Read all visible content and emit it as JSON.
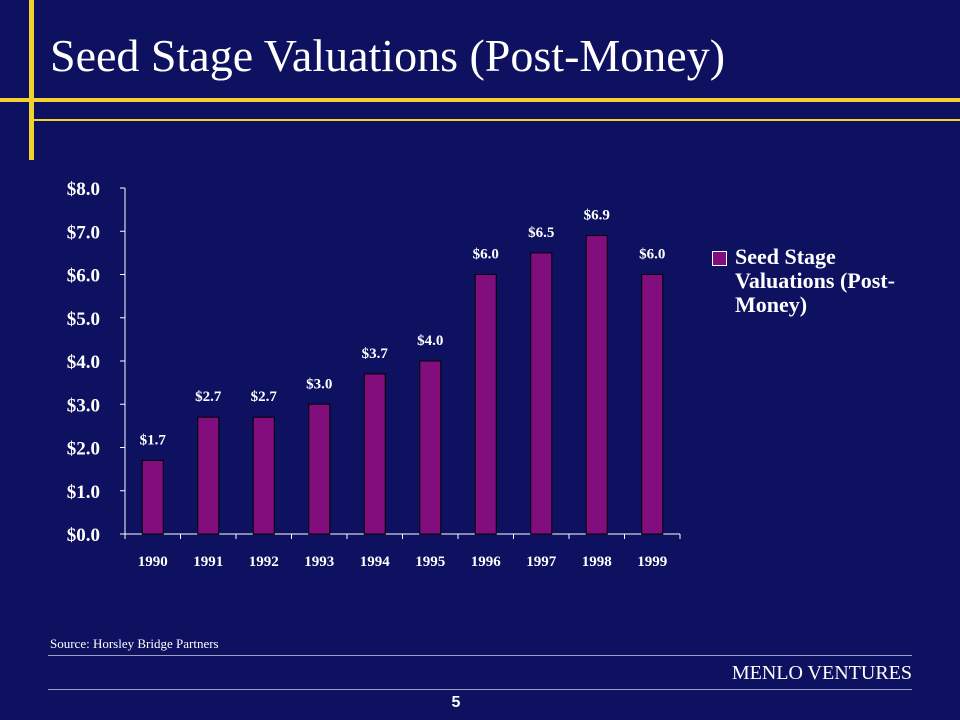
{
  "slide": {
    "title": "Seed Stage Valuations (Post-Money)",
    "source": "Source: Horsley Bridge Partners",
    "company": "MENLO VENTURES",
    "page_number": "5"
  },
  "colors": {
    "background": "#0e1060",
    "accent": "#f2d22e",
    "bar": "#820e7d",
    "text": "#ffffff"
  },
  "chart_data": {
    "type": "bar",
    "categories": [
      "1990",
      "1991",
      "1992",
      "1993",
      "1994",
      "1995",
      "1996",
      "1997",
      "1998",
      "1999"
    ],
    "series": [
      {
        "name": "Seed Stage Valuations (Post-Money)",
        "values": [
          1.7,
          2.7,
          2.7,
          3.0,
          3.7,
          4.0,
          6.0,
          6.5,
          6.9,
          6.0
        ]
      }
    ],
    "data_labels": [
      "$1.7",
      "$2.7",
      "$2.7",
      "$3.0",
      "$3.7",
      "$4.0",
      "$6.0",
      "$6.5",
      "$6.9",
      "$6.0"
    ],
    "yticks": [
      "$0.0",
      "$1.0",
      "$2.0",
      "$3.0",
      "$4.0",
      "$5.0",
      "$6.0",
      "$7.0",
      "$8.0"
    ],
    "ylim": [
      0,
      8
    ],
    "legend_position": "right",
    "grid": false
  }
}
